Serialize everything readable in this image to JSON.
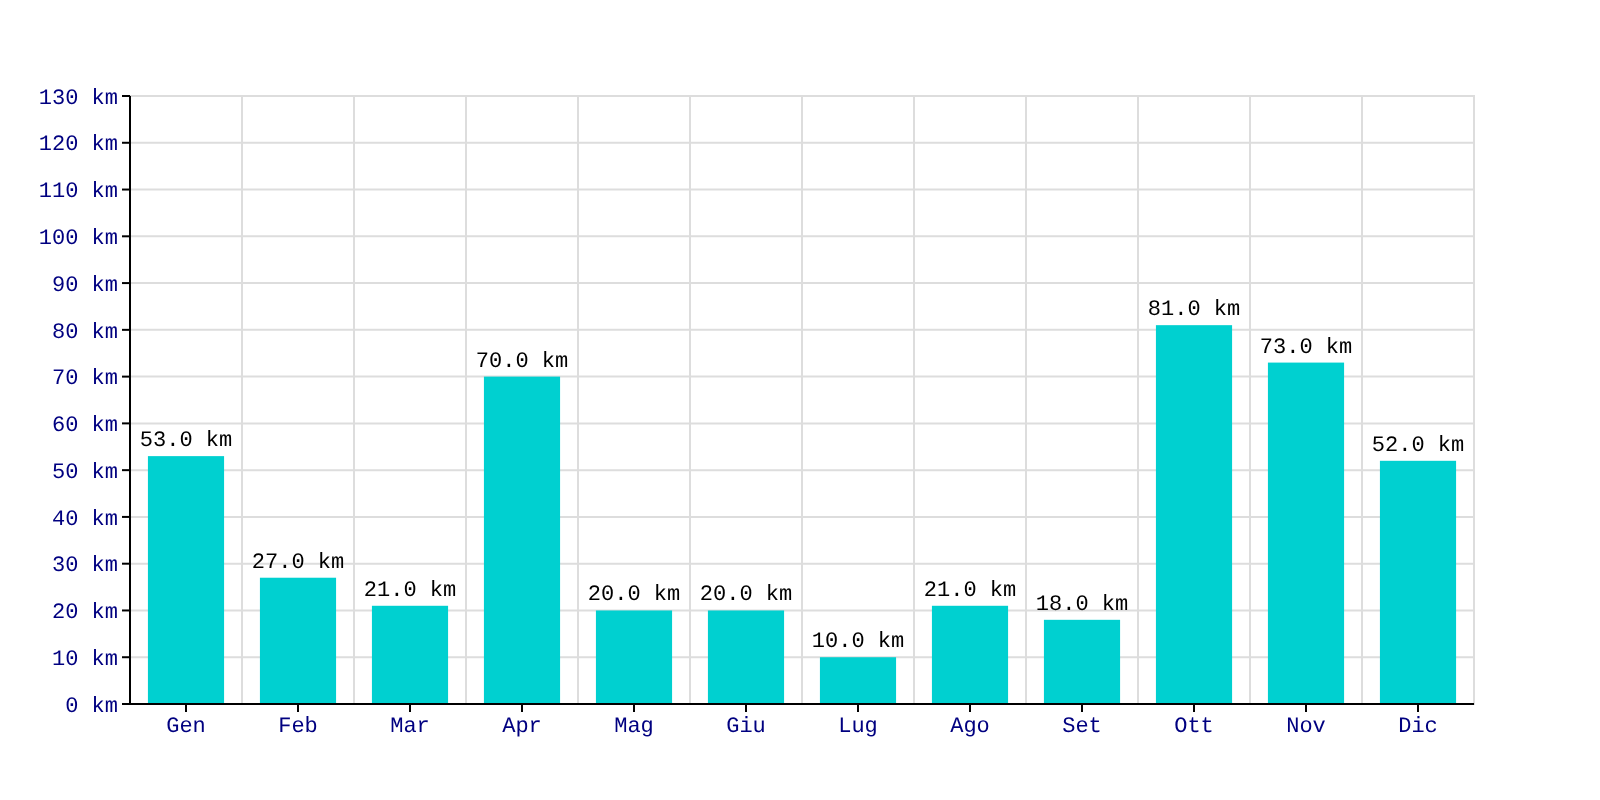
{
  "chart_data": {
    "type": "bar",
    "categories": [
      "Gen",
      "Feb",
      "Mar",
      "Apr",
      "Mag",
      "Giu",
      "Lug",
      "Ago",
      "Set",
      "Ott",
      "Nov",
      "Dic"
    ],
    "values": [
      53,
      27,
      21,
      70,
      20,
      20,
      10,
      21,
      18,
      81,
      73,
      52
    ],
    "value_labels": [
      "53.0 km",
      "27.0 km",
      "21.0 km",
      "70.0 km",
      "20.0 km",
      "20.0 km",
      "10.0 km",
      "21.0 km",
      "18.0 km",
      "81.0 km",
      "73.0 km",
      "52.0 km"
    ],
    "color": "#00d0d0",
    "ylim": [
      0,
      130
    ],
    "yticks": [
      {
        "value": 0,
        "label": "0 km"
      },
      {
        "value": 10,
        "label": "10 km"
      },
      {
        "value": 20,
        "label": "20 km"
      },
      {
        "value": 30,
        "label": "30 km"
      },
      {
        "value": 40,
        "label": "40 km"
      },
      {
        "value": 50,
        "label": "50 km"
      },
      {
        "value": 60,
        "label": "60 km"
      },
      {
        "value": 70,
        "label": "70 km"
      },
      {
        "value": 80,
        "label": "80 km"
      },
      {
        "value": 90,
        "label": "90 km"
      },
      {
        "value": 100,
        "label": "100 km"
      },
      {
        "value": 110,
        "label": "110 km"
      },
      {
        "value": 120,
        "label": "120 km"
      },
      {
        "value": 130,
        "label": "130 km"
      }
    ],
    "grid": true
  }
}
